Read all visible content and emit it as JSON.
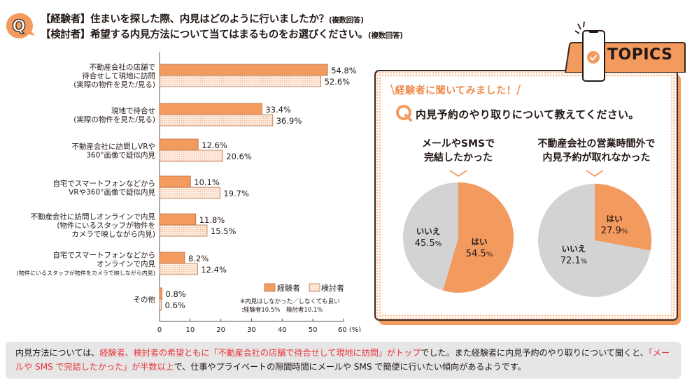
{
  "header": {
    "q_icon": "q-speech-bubble-icon",
    "line1_main": "【経験者】住まいを探した際、内見はどのように行いましたか？",
    "line1_note": "(複数回答)",
    "line2_main": "【検討者】希望する内見方法について当てはまるものをお選びください。",
    "line2_note": "(複数回答)"
  },
  "colors": {
    "experienced": "#f39a5f",
    "considering_fill": "#fdeee3",
    "considering_dot": "#f4b58c",
    "bar_border": "#b4704a",
    "pie_yes": "#f39a5f",
    "pie_no": "#d3d3d4",
    "highlight_text": "#e8343a",
    "topics_orange": "#f39a5f"
  },
  "chart_data": [
    {
      "type": "bar",
      "orientation": "horizontal",
      "title": "内見方法",
      "xlabel": "(%)",
      "xlim": [
        0,
        60
      ],
      "xticks": [
        "0",
        "10",
        "20",
        "30",
        "40",
        "50",
        "60 (%)"
      ],
      "categories": [
        [
          "不動産会社の店舗で",
          "待合せして現地に訪問",
          "(実際の物件を見た/見る)"
        ],
        [
          "現地で待合せ",
          "(実際の物件を見た/見る)"
        ],
        [
          "不動産会社に訪問しVRや",
          "360°画像で疑似内見"
        ],
        [
          "自宅でスマートフォンなどから",
          "VRや360°画像で疑似内見"
        ],
        [
          "不動産会社に訪問しオンラインで内見",
          "(物件にいるスタッフが物件を",
          "カメラで映しながら内見)"
        ],
        [
          "自宅でスマートフォンなどから",
          "オンラインで内見",
          "(物件にいるスタッフが物件をカメラで映しながら内見)"
        ],
        [
          "その他"
        ]
      ],
      "series": [
        {
          "name": "経験者",
          "values": [
            54.8,
            33.4,
            12.6,
            10.1,
            11.8,
            8.2,
            0.8
          ]
        },
        {
          "name": "検討者",
          "values": [
            52.6,
            36.9,
            20.6,
            19.7,
            15.5,
            12.4,
            0.6
          ]
        }
      ],
      "legend": [
        "経験者",
        "検討者"
      ],
      "legend_position": "bottom-right",
      "note_line1": "※内見はしなかった／しなくても良い",
      "note_line2": ":経験者10.5%　検討者10.1%",
      "grid": false
    },
    {
      "type": "pie",
      "title": "メールやSMSで完結したかった",
      "slices": [
        {
          "label": "はい",
          "value": 54.5
        },
        {
          "label": "いいえ",
          "value": 45.5
        }
      ]
    },
    {
      "type": "pie",
      "title": "不動産会社の営業時間外で内見予約が取れなかった",
      "slices": [
        {
          "label": "はい",
          "value": 27.9
        },
        {
          "label": "いいえ",
          "value": 72.1
        }
      ]
    }
  ],
  "topics": {
    "tab_label": "TOPICS",
    "phone_icon": "smartphone-check-icon",
    "subheading": "経験者に聞いてみました！",
    "question": "内見予約のやり取りについて教えてください。",
    "pie1_title_l1": "メールやSMSで",
    "pie1_title_l2": "完結したかった",
    "pie2_title_l1": "不動産会社の営業時間外で",
    "pie2_title_l2": "内見予約が取れなかった",
    "pct_sign": "%"
  },
  "summary": {
    "p1": "内見方法については、",
    "h1": "経験者、検討者の希望ともに「不動産会社の店舗で待合せして現地に訪問」がトップ",
    "p2": "でした。また経験者に内見予約のやり取りについて聞くと、",
    "h2": "「メールや SMS で完結したかった」が半数以上",
    "p3": "で、仕事やプライベートの隙間時間にメールや SMS で簡便に行いたい傾向があるようです。"
  }
}
